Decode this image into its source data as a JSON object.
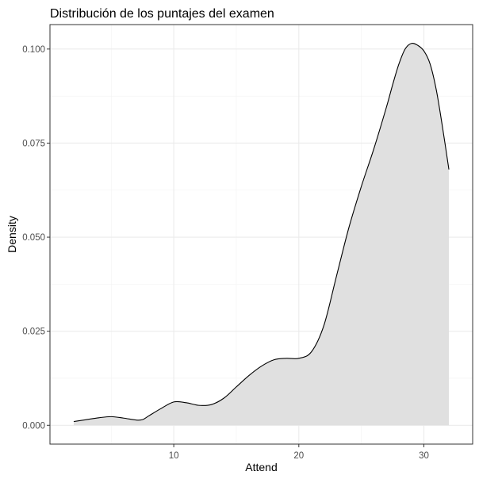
{
  "chart_data": {
    "type": "area",
    "title": "Distribución de los puntajes del examen",
    "xlabel": "Attend",
    "ylabel": "Density",
    "xlim": [
      0.1,
      33.9
    ],
    "ylim": [
      -0.005,
      0.1065
    ],
    "x_ticks": [
      10,
      20,
      30
    ],
    "x_tick_labels": [
      "10",
      "20",
      "30"
    ],
    "y_ticks": [
      0.0,
      0.025,
      0.05,
      0.075,
      0.1
    ],
    "y_tick_labels": [
      "0.000",
      "0.025",
      "0.050",
      "0.075",
      "0.100"
    ],
    "grid": true,
    "legend": "none",
    "fill_color": "#e0e0e0",
    "line_color": "#000000",
    "series": [
      {
        "x": [
          2,
          3,
          4,
          5,
          6,
          7,
          7.5,
          8,
          9,
          10,
          11,
          12,
          13,
          14,
          15,
          16,
          17,
          18,
          19,
          20,
          21,
          22,
          23,
          24,
          25,
          26,
          27,
          27.5,
          28,
          28.5,
          29,
          29.5,
          30,
          30.5,
          31,
          31.5,
          32
        ],
        "y": [
          0.001,
          0.0015,
          0.002,
          0.0023,
          0.0019,
          0.0014,
          0.0015,
          0.0025,
          0.0045,
          0.0062,
          0.006,
          0.0053,
          0.0055,
          0.0072,
          0.0102,
          0.0132,
          0.0157,
          0.0174,
          0.0178,
          0.0178,
          0.0195,
          0.0265,
          0.0395,
          0.0525,
          0.0635,
          0.0735,
          0.0845,
          0.0905,
          0.096,
          0.1,
          0.1015,
          0.101,
          0.0995,
          0.096,
          0.089,
          0.079,
          0.068
        ]
      }
    ]
  }
}
